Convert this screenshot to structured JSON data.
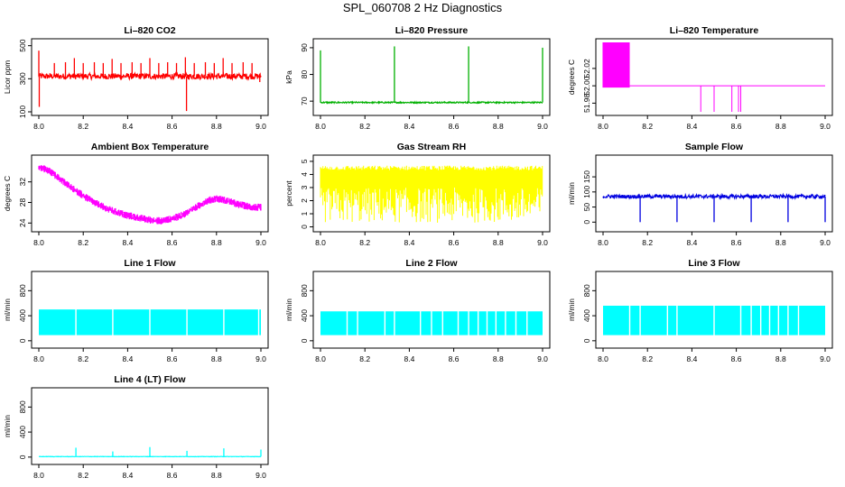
{
  "figure": {
    "title": "SPL_060708  2 Hz Diagnostics"
  },
  "chart_data": [
    {
      "type": "line",
      "title": "Li–820 CO2",
      "ylabel": "Licor ppm",
      "xlim": [
        8.0,
        9.0
      ],
      "ylim": [
        100,
        520
      ],
      "xticks": [
        8.0,
        8.2,
        8.4,
        8.6,
        8.8,
        9.0
      ],
      "xtick_labels": [
        "8.0",
        "8.2",
        "8.4",
        "8.6",
        "8.8",
        "9.0"
      ],
      "yticks": [
        100,
        300,
        500
      ],
      "ytick_labels": [
        "100",
        "300",
        "500"
      ],
      "color": "#ff0000",
      "style": "noise",
      "series": [
        {
          "name": "CO2",
          "baseline": 315,
          "noise": 18,
          "spikes": [
            [
              8.0,
              470
            ],
            [
              8.002,
              130
            ],
            [
              8.07,
              395
            ],
            [
              8.12,
              400
            ],
            [
              8.16,
              425
            ],
            [
              8.2,
              395
            ],
            [
              8.25,
              400
            ],
            [
              8.29,
              395
            ],
            [
              8.33,
              420
            ],
            [
              8.37,
              395
            ],
            [
              8.42,
              400
            ],
            [
              8.46,
              395
            ],
            [
              8.5,
              425
            ],
            [
              8.54,
              395
            ],
            [
              8.58,
              400
            ],
            [
              8.62,
              395
            ],
            [
              8.66,
              430
            ],
            [
              8.665,
              105
            ],
            [
              8.7,
              395
            ],
            [
              8.75,
              400
            ],
            [
              8.79,
              395
            ],
            [
              8.83,
              425
            ],
            [
              8.87,
              395
            ],
            [
              8.92,
              400
            ],
            [
              8.96,
              395
            ],
            [
              8.995,
              280
            ]
          ]
        }
      ]
    },
    {
      "type": "line",
      "title": "Li–820 Pressure",
      "ylabel": "kPa",
      "xlim": [
        8.0,
        9.0
      ],
      "ylim": [
        66,
        92
      ],
      "xticks": [
        8.0,
        8.2,
        8.4,
        8.6,
        8.8,
        9.0
      ],
      "xtick_labels": [
        "8.0",
        "8.2",
        "8.4",
        "8.6",
        "8.8",
        "9.0"
      ],
      "yticks": [
        70,
        80,
        90
      ],
      "ytick_labels": [
        "70",
        "80",
        "90"
      ],
      "color": "#00b000",
      "style": "noise",
      "series": [
        {
          "name": "Pressure",
          "baseline": 69.5,
          "noise": 0.25,
          "spikes": [
            [
              8.0,
              89
            ],
            [
              8.333,
              90.5
            ],
            [
              8.667,
              90.5
            ],
            [
              9.0,
              90
            ]
          ]
        }
      ]
    },
    {
      "type": "line",
      "title": "Li–820 Temperature",
      "ylabel": "degrees C",
      "xlim": [
        8.0,
        9.0
      ],
      "ylim": [
        51.97,
        52.05
      ],
      "xticks": [
        8.0,
        8.2,
        8.4,
        8.6,
        8.8,
        9.0
      ],
      "xtick_labels": [
        "8.0",
        "8.2",
        "8.4",
        "8.6",
        "8.8",
        "9.0"
      ],
      "yticks": [
        51.98,
        52.0,
        52.02
      ],
      "ytick_labels": [
        "51.98",
        "52.00",
        "52.02"
      ],
      "color": "#ff00ff",
      "style": "temp",
      "series": [
        {
          "name": "Temperature",
          "baseline": 52.0,
          "high_band": [
            8.0,
            8.12,
            52.05,
            51.998
          ],
          "dips": [
            [
              8.44,
              51.97
            ],
            [
              8.5,
              51.97
            ],
            [
              8.58,
              51.97
            ],
            [
              8.61,
              51.97
            ],
            [
              8.62,
              51.97
            ]
          ]
        }
      ]
    },
    {
      "type": "line",
      "title": "Ambient Box Temperature",
      "ylabel": "degrees C",
      "xlim": [
        8.0,
        9.0
      ],
      "ylim": [
        23,
        36.5
      ],
      "xticks": [
        8.0,
        8.2,
        8.4,
        8.6,
        8.8,
        9.0
      ],
      "xtick_labels": [
        "8.0",
        "8.2",
        "8.4",
        "8.6",
        "8.8",
        "9.0"
      ],
      "yticks": [
        24,
        28,
        32
      ],
      "ytick_labels": [
        "24",
        "28",
        "32"
      ],
      "color": "#ff00ff",
      "style": "band",
      "series": [
        {
          "name": "Box temperature",
          "x": [
            8.0,
            8.05,
            8.1,
            8.15,
            8.2,
            8.25,
            8.3,
            8.35,
            8.4,
            8.45,
            8.5,
            8.55,
            8.6,
            8.65,
            8.7,
            8.75,
            8.8,
            8.85,
            8.9,
            8.95,
            9.0
          ],
          "y": [
            35.0,
            34.0,
            32.4,
            30.8,
            29.3,
            28.0,
            26.9,
            26.1,
            25.5,
            25.0,
            24.6,
            24.4,
            24.8,
            25.6,
            26.8,
            28.2,
            28.8,
            28.3,
            27.6,
            27.2,
            27.0
          ],
          "spread": 0.9
        }
      ]
    },
    {
      "type": "line",
      "title": "Gas Stream RH",
      "ylabel": "percent",
      "xlim": [
        8.0,
        9.0
      ],
      "ylim": [
        -0.1,
        5.2
      ],
      "xticks": [
        8.0,
        8.2,
        8.4,
        8.6,
        8.8,
        9.0
      ],
      "xtick_labels": [
        "8.0",
        "8.2",
        "8.4",
        "8.6",
        "8.8",
        "9.0"
      ],
      "yticks": [
        0,
        1,
        2,
        3,
        4,
        5
      ],
      "ytick_labels": [
        "0",
        "1",
        "2",
        "3",
        "4",
        "5"
      ],
      "color": "#ffff00",
      "style": "osc",
      "series": [
        {
          "name": "RH",
          "top": 4.5,
          "low_min": 0.3,
          "low_max": 3.0
        }
      ]
    },
    {
      "type": "line",
      "title": "Sample Flow",
      "ylabel": "ml/min",
      "xlim": [
        8.0,
        9.0
      ],
      "ylim": [
        -20,
        210
      ],
      "xticks": [
        8.0,
        8.2,
        8.4,
        8.6,
        8.8,
        9.0
      ],
      "xtick_labels": [
        "8.0",
        "8.2",
        "8.4",
        "8.6",
        "8.8",
        "9.0"
      ],
      "yticks": [
        0,
        50,
        100,
        150
      ],
      "ytick_labels": [
        "0",
        "50",
        "100",
        "150"
      ],
      "color": "#0000e0",
      "style": "noise",
      "series": [
        {
          "name": "Sample flow",
          "baseline": 85,
          "noise": 6,
          "spikes": [
            [
              8.167,
              0
            ],
            [
              8.333,
              0
            ],
            [
              8.5,
              0
            ],
            [
              8.667,
              0
            ],
            [
              8.833,
              0
            ],
            [
              9.0,
              0
            ]
          ]
        }
      ]
    },
    {
      "type": "line",
      "title": "Line 1 Flow",
      "ylabel": "ml/min",
      "xlim": [
        8.0,
        9.0
      ],
      "ylim": [
        -60,
        1050
      ],
      "xticks": [
        8.0,
        8.2,
        8.4,
        8.6,
        8.8,
        9.0
      ],
      "xtick_labels": [
        "8.0",
        "8.2",
        "8.4",
        "8.6",
        "8.8",
        "9.0"
      ],
      "yticks": [
        0,
        400,
        800
      ],
      "ytick_labels": [
        "0",
        "400",
        "800"
      ],
      "color": "#00ffff",
      "style": "block",
      "series": [
        {
          "name": "Line 1",
          "low": 90,
          "high": 500,
          "gaps": [
            8.167,
            8.333,
            8.5,
            8.667,
            8.833,
            8.99
          ]
        }
      ]
    },
    {
      "type": "line",
      "title": "Line 2 Flow",
      "ylabel": "ml/min",
      "xlim": [
        8.0,
        9.0
      ],
      "ylim": [
        -60,
        1050
      ],
      "xticks": [
        8.0,
        8.2,
        8.4,
        8.6,
        8.8,
        9.0
      ],
      "xtick_labels": [
        "8.0",
        "8.2",
        "8.4",
        "8.6",
        "8.8",
        "9.0"
      ],
      "yticks": [
        0,
        400,
        800
      ],
      "ytick_labels": [
        "0",
        "400",
        "800"
      ],
      "color": "#00ffff",
      "style": "block",
      "series": [
        {
          "name": "Line 2",
          "low": 90,
          "high": 470,
          "gaps": [
            8.12,
            8.167,
            8.29,
            8.333,
            8.45,
            8.5,
            8.55,
            8.62,
            8.667,
            8.71,
            8.75,
            8.79,
            8.833,
            8.88,
            8.93
          ]
        }
      ]
    },
    {
      "type": "line",
      "title": "Line 3 Flow",
      "ylabel": "ml/min",
      "xlim": [
        8.0,
        9.0
      ],
      "ylim": [
        -60,
        1050
      ],
      "xticks": [
        8.0,
        8.2,
        8.4,
        8.6,
        8.8,
        9.0
      ],
      "xtick_labels": [
        "8.0",
        "8.2",
        "8.4",
        "8.6",
        "8.8",
        "9.0"
      ],
      "yticks": [
        0,
        400,
        800
      ],
      "ytick_labels": [
        "0",
        "400",
        "800"
      ],
      "color": "#00ffff",
      "style": "block",
      "series": [
        {
          "name": "Line 3",
          "low": 90,
          "high": 560,
          "gaps": [
            8.12,
            8.167,
            8.29,
            8.333,
            8.5,
            8.62,
            8.667,
            8.71,
            8.75,
            8.79,
            8.833,
            8.88
          ]
        }
      ]
    },
    {
      "type": "line",
      "title": "Line 4 (LT) Flow",
      "ylabel": "ml/min",
      "xlim": [
        8.0,
        9.0
      ],
      "ylim": [
        -60,
        1050
      ],
      "xticks": [
        8.0,
        8.2,
        8.4,
        8.6,
        8.8,
        9.0
      ],
      "xtick_labels": [
        "8.0",
        "8.2",
        "8.4",
        "8.6",
        "8.8",
        "9.0"
      ],
      "yticks": [
        0,
        400,
        800
      ],
      "ytick_labels": [
        "0",
        "400",
        "800"
      ],
      "color": "#00ffff",
      "style": "noise",
      "series": [
        {
          "name": "Line 4",
          "baseline": 8,
          "noise": 3,
          "spikes": [
            [
              8.167,
              150
            ],
            [
              8.333,
              90
            ],
            [
              8.5,
              160
            ],
            [
              8.667,
              100
            ],
            [
              8.833,
              140
            ],
            [
              9.0,
              120
            ]
          ]
        }
      ]
    }
  ]
}
